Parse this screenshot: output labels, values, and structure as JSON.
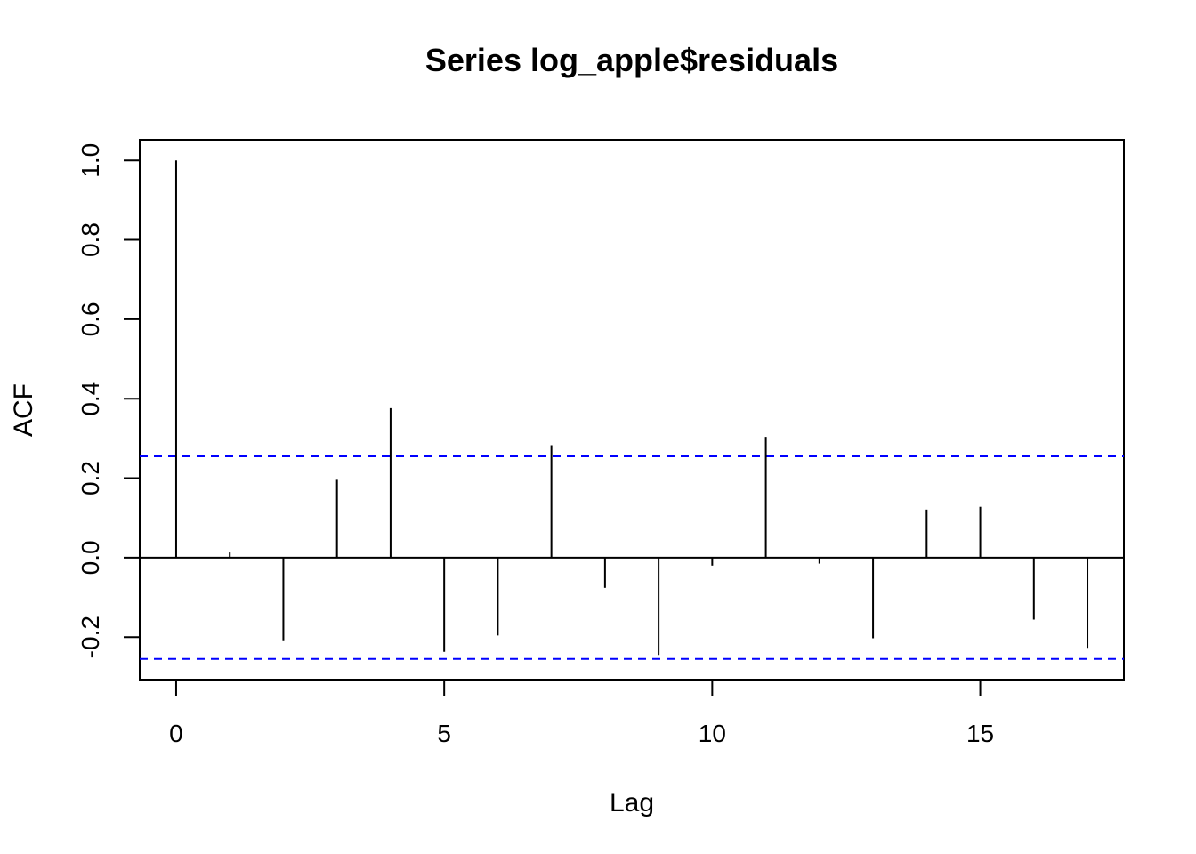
{
  "chart_data": {
    "type": "bar",
    "title": "Series  log_apple$residuals",
    "xlabel": "Lag",
    "ylabel": "ACF",
    "xlim": [
      -0.68,
      17.68
    ],
    "ylim": [
      -0.307,
      1.052
    ],
    "x_ticks": [
      {
        "value": 0,
        "label": "0"
      },
      {
        "value": 5,
        "label": "5"
      },
      {
        "value": 10,
        "label": "10"
      },
      {
        "value": 15,
        "label": "15"
      }
    ],
    "y_ticks": [
      {
        "value": -0.2,
        "label": "-0.2"
      },
      {
        "value": 0.0,
        "label": "0.0"
      },
      {
        "value": 0.2,
        "label": "0.2"
      },
      {
        "value": 0.4,
        "label": "0.4"
      },
      {
        "value": 0.6,
        "label": "0.6"
      },
      {
        "value": 0.8,
        "label": "0.8"
      },
      {
        "value": 1.0,
        "label": "1.0"
      }
    ],
    "lags": [
      0,
      1,
      2,
      3,
      4,
      5,
      6,
      7,
      8,
      9,
      10,
      11,
      12,
      13,
      14,
      15,
      16,
      17
    ],
    "acf": [
      1.0,
      0.013,
      -0.208,
      0.196,
      0.376,
      -0.237,
      -0.196,
      0.283,
      -0.076,
      -0.245,
      -0.02,
      0.304,
      -0.015,
      -0.203,
      0.121,
      0.128,
      -0.156,
      -0.227
    ],
    "confidence_bound": 0.255,
    "confidence_color": "#0000ff",
    "grid": false
  }
}
